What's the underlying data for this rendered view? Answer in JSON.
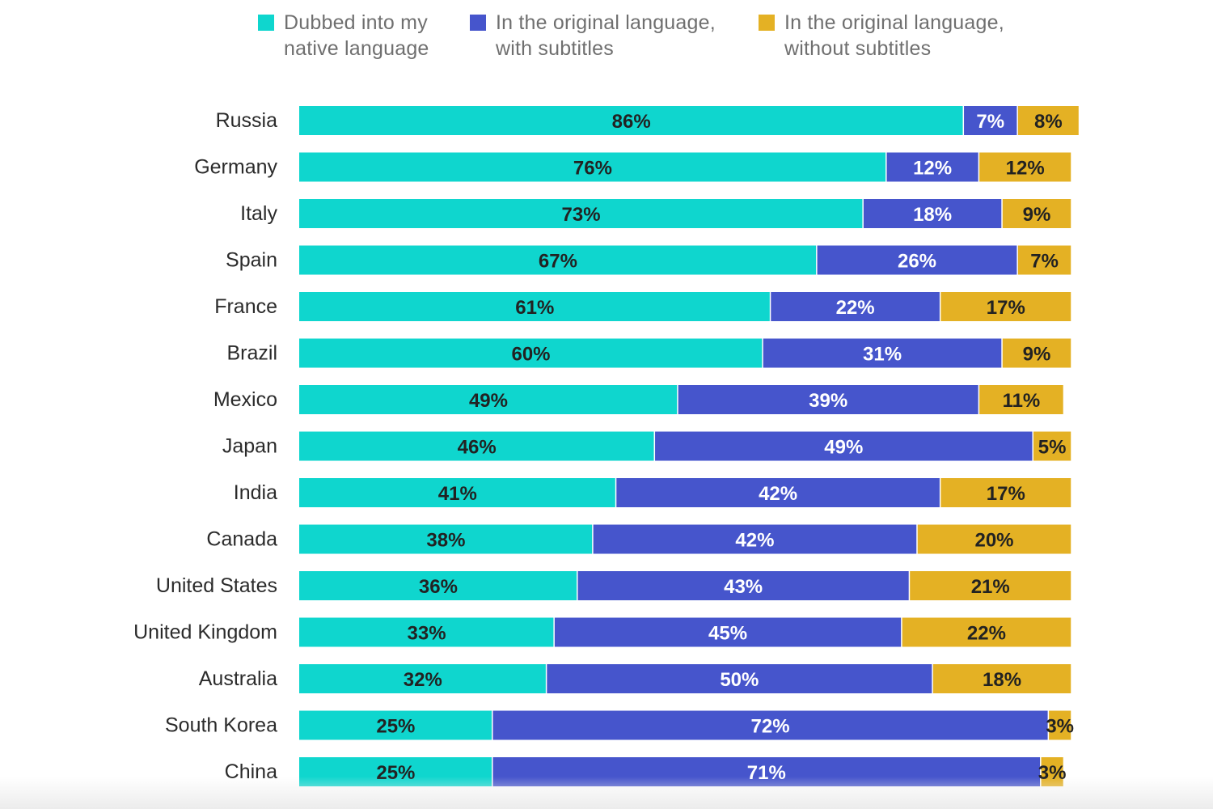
{
  "chart_data": {
    "type": "bar",
    "orientation": "horizontal",
    "stacked": true,
    "title": "",
    "xlabel": "",
    "ylabel": "",
    "xlim": [
      0,
      100
    ],
    "grid": false,
    "legend_position": "top",
    "categories": [
      "Russia",
      "Germany",
      "Italy",
      "Spain",
      "France",
      "Brazil",
      "Mexico",
      "Japan",
      "India",
      "Canada",
      "United States",
      "United Kingdom",
      "Australia",
      "South Korea",
      "China"
    ],
    "series": [
      {
        "name": "Dubbed into my native language",
        "color": "#0fd6ce",
        "label_color": "#222222",
        "values": [
          86,
          76,
          73,
          67,
          61,
          60,
          49,
          46,
          41,
          38,
          36,
          33,
          32,
          25,
          25
        ]
      },
      {
        "name": "In the original language, with subtitles",
        "color": "#4655cc",
        "label_color": "#ffffff",
        "values": [
          7,
          12,
          18,
          26,
          22,
          31,
          39,
          49,
          42,
          42,
          43,
          45,
          50,
          72,
          71
        ]
      },
      {
        "name": "In the original language, without subtitles",
        "color": "#e4b124",
        "label_color": "#222222",
        "values": [
          8,
          12,
          9,
          7,
          17,
          9,
          11,
          5,
          17,
          20,
          21,
          22,
          18,
          3,
          3
        ]
      }
    ],
    "value_suffix": "%"
  },
  "legend": [
    {
      "label": "Dubbed into my\nnative language",
      "color": "#0fd6ce"
    },
    {
      "label": "In the original language,\nwith subtitles",
      "color": "#4655cc"
    },
    {
      "label": "In the original language,\nwithout subtitles",
      "color": "#e4b124"
    }
  ]
}
